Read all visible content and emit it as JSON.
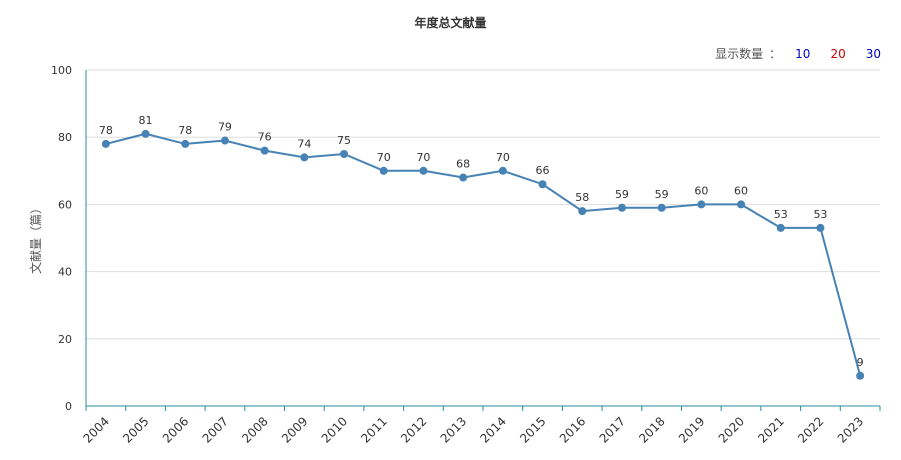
{
  "chart_data": {
    "type": "line",
    "title": "年度总文献量",
    "ylabel": "文献量（篇）",
    "xlabel": "",
    "ylim": [
      0,
      100
    ],
    "yticks": [
      0,
      20,
      40,
      60,
      80,
      100
    ],
    "categories": [
      "2004",
      "2005",
      "2006",
      "2007",
      "2008",
      "2009",
      "2010",
      "2011",
      "2012",
      "2013",
      "2014",
      "2015",
      "2016",
      "2017",
      "2018",
      "2019",
      "2020",
      "2021",
      "2022",
      "2023"
    ],
    "values": [
      78,
      81,
      78,
      79,
      76,
      74,
      75,
      70,
      70,
      68,
      70,
      66,
      58,
      59,
      59,
      60,
      60,
      53,
      53,
      9
    ],
    "color": "#4682b4",
    "grid": true
  },
  "display": {
    "label": "显示数量",
    "colon": "：",
    "options": [
      {
        "text": "10",
        "color": "#0000cc"
      },
      {
        "text": "20",
        "color": "#cc0000"
      },
      {
        "text": "30",
        "color": "#0000cc"
      }
    ]
  }
}
